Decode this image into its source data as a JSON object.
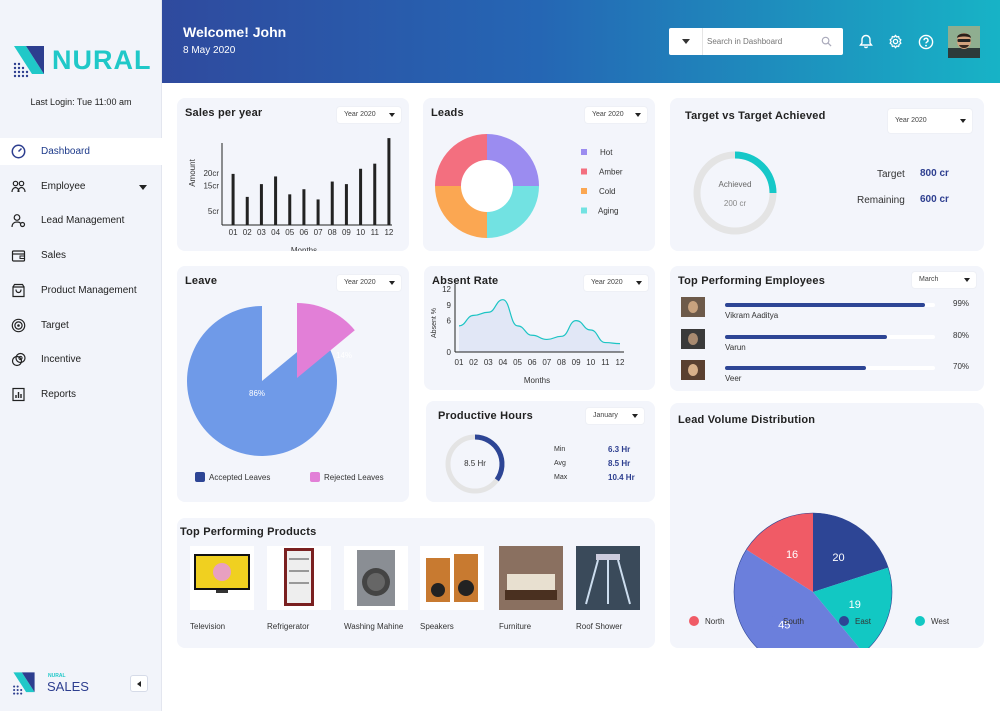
{
  "brand": {
    "name": "NURAL",
    "footer_small": "NURAL",
    "footer_big": "SALES",
    "collapse_icon": "chevron-left-icon"
  },
  "user": {
    "last_login": "Last Login: Tue 11:00 am",
    "welcome": "Welcome! John",
    "date": "8 May 2020"
  },
  "sidebar": {
    "items": [
      {
        "label": "Dashboard",
        "icon": "gauge-icon",
        "active": true
      },
      {
        "label": "Employee",
        "icon": "people-icon"
      },
      {
        "label": "Lead Management",
        "icon": "user-gear-icon"
      },
      {
        "label": "Sales",
        "icon": "wallet-icon"
      },
      {
        "label": "Product Management",
        "icon": "bag-icon"
      },
      {
        "label": "Target",
        "icon": "target-icon"
      },
      {
        "label": "Incentive",
        "icon": "coins-icon"
      },
      {
        "label": "Reports",
        "icon": "report-icon"
      }
    ]
  },
  "search": {
    "placeholder": "Search in Dashboard"
  },
  "header_icons": [
    "bell-icon",
    "gear-icon",
    "help-icon"
  ],
  "cards": {
    "sales": {
      "title": "Sales per year",
      "select": "Year 2020",
      "xlabel": "Months",
      "ylabel": "Amount"
    },
    "leads": {
      "title": "Leads",
      "select": "Year 2020"
    },
    "target": {
      "title": "Target vs Target Achieved",
      "select": "Year 2020",
      "ring_label": "Achieved",
      "ring_value": "200 cr",
      "target_label": "Target",
      "target_value": "800 cr",
      "remaining_label": "Remaining",
      "remaining_value": "600 cr",
      "achieved_fraction": 0.25
    },
    "leave": {
      "title": "Leave",
      "select": "Year 2020"
    },
    "absent": {
      "title": "Absent Rate",
      "select": "Year 2020",
      "xlabel": "Months",
      "ylabel": "Absent %"
    },
    "employees": {
      "title": "Top Performing Employees",
      "select": "March",
      "rows": [
        {
          "name": "Vikram Aaditya",
          "percent": "99%",
          "value": 0.99
        },
        {
          "name": "Varun",
          "percent": "80%",
          "value": 0.8
        },
        {
          "name": "Veer",
          "percent": "70%",
          "value": 0.7
        }
      ]
    },
    "hours": {
      "title": "Productive Hours",
      "select": "January",
      "ring_value": "8.5 Hr",
      "fraction": 0.35,
      "stats": [
        {
          "label": "Min",
          "value": "6.3 Hr"
        },
        {
          "label": "Avg",
          "value": "8.5 Hr"
        },
        {
          "label": "Max",
          "value": "10.4 Hr"
        }
      ]
    },
    "lead_volume": {
      "title": "Lead Volume Distribution"
    },
    "products": {
      "title": "Top Performing Products",
      "items": [
        {
          "label": "Television"
        },
        {
          "label": "Refrigerator"
        },
        {
          "label": "Washing Mahine"
        },
        {
          "label": "Speakers"
        },
        {
          "label": "Furniture"
        },
        {
          "label": "Roof Shower"
        }
      ]
    }
  },
  "chart_data": [
    {
      "type": "bar",
      "title": "Sales per year",
      "categories": [
        "01",
        "02",
        "03",
        "04",
        "05",
        "06",
        "07",
        "08",
        "09",
        "10",
        "11",
        "12"
      ],
      "values": [
        20,
        11,
        16,
        19,
        12,
        14,
        10,
        17,
        16,
        22,
        24,
        34
      ],
      "yticks": [
        "5cr",
        "15cr",
        "20cr"
      ],
      "ytick_values": [
        5,
        15,
        20
      ],
      "ylim": [
        0,
        36
      ],
      "xlabel": "Months",
      "ylabel": "Amount"
    },
    {
      "type": "pie",
      "title": "Leads",
      "donut": true,
      "series": [
        {
          "name": "Hot",
          "value": 25,
          "color": "#9b8cf0"
        },
        {
          "name": "Amber",
          "value": 25,
          "color": "#f36f7f"
        },
        {
          "name": "Cold",
          "value": 25,
          "color": "#fba752"
        },
        {
          "name": "Aging",
          "value": 25,
          "color": "#72e2e2"
        }
      ]
    },
    {
      "type": "pie",
      "title": "Leave",
      "series": [
        {
          "name": "Accepted Leaves",
          "value": 86,
          "label": "86%",
          "color": "#6f9ae8"
        },
        {
          "name": "Rejected Leaves",
          "value": 14,
          "label": "14%",
          "color": "#e27fd7"
        }
      ],
      "legend_colors": [
        "#2d4595",
        "#e27fd7"
      ]
    },
    {
      "type": "area",
      "title": "Absent Rate",
      "x": [
        "01",
        "02",
        "03",
        "04",
        "05",
        "06",
        "07",
        "08",
        "09",
        "10",
        "11",
        "12"
      ],
      "y": [
        5,
        7,
        7.6,
        10,
        5,
        3.2,
        2.4,
        3,
        6,
        4.2,
        1.8,
        1.6
      ],
      "yticks": [
        0,
        6,
        9,
        12
      ],
      "ylim": [
        0,
        13
      ],
      "xlabel": "Months",
      "ylabel": "Absent %"
    },
    {
      "type": "pie",
      "title": "Lead Volume Distribution",
      "series": [
        {
          "name": "North",
          "value": 16,
          "color": "#f05b66"
        },
        {
          "name": "East",
          "value": 20,
          "color": "#2d4595"
        },
        {
          "name": "West",
          "value": 19,
          "color": "#12c8c3"
        },
        {
          "name": "South",
          "value": 45,
          "color": "#6b7fdc"
        }
      ],
      "legend": [
        "North",
        "South",
        "East",
        "West"
      ],
      "legend_colors": [
        "#f05b66",
        "#6b7fdc",
        "#2d4595",
        "#12c8c3"
      ]
    }
  ]
}
